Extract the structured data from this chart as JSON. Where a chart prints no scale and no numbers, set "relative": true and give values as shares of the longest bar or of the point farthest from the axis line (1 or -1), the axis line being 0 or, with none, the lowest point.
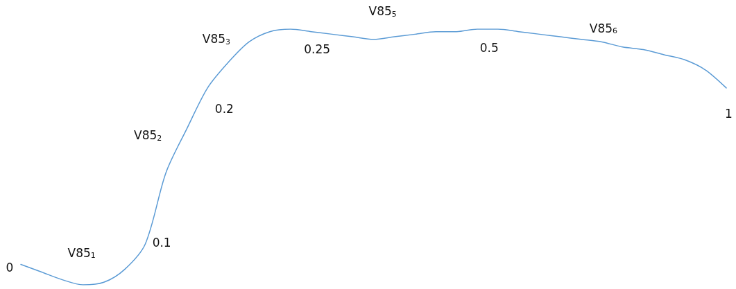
{
  "chart_data": {
    "type": "line",
    "relative": true,
    "marker": "none",
    "line_style": "solid",
    "categories": [
      null,
      null,
      null,
      null,
      null,
      null,
      null,
      null,
      null,
      null,
      null,
      null,
      null,
      null,
      null,
      null,
      null,
      null,
      null,
      null,
      null,
      null,
      null,
      null,
      null,
      null,
      null,
      null,
      null,
      null,
      null,
      null,
      null,
      null,
      null
    ],
    "series": [
      {
        "color": "#5b9bd5",
        "values": [
          0.08,
          0.05,
          0.02,
          0,
          0.01,
          0.06,
          0.16,
          0.44,
          0.61,
          0.77,
          0.87,
          0.95,
          0.99,
          1,
          0.99,
          0.98,
          0.97,
          0.96,
          0.97,
          0.98,
          0.99,
          0.99,
          1,
          1,
          0.99,
          0.98,
          0.97,
          0.96,
          0.95,
          0.93,
          0.92,
          0.9,
          0.88,
          0.84,
          0.77
        ]
      }
    ],
    "annotations": [
      "0",
      "V85$_{1}$",
      "0.1",
      "V85$_{2}$",
      "0.2",
      "V85$_{3}$",
      "0.25",
      "V85$_{5}$",
      "0.5",
      "V85$_{6}$",
      "1"
    ]
  }
}
